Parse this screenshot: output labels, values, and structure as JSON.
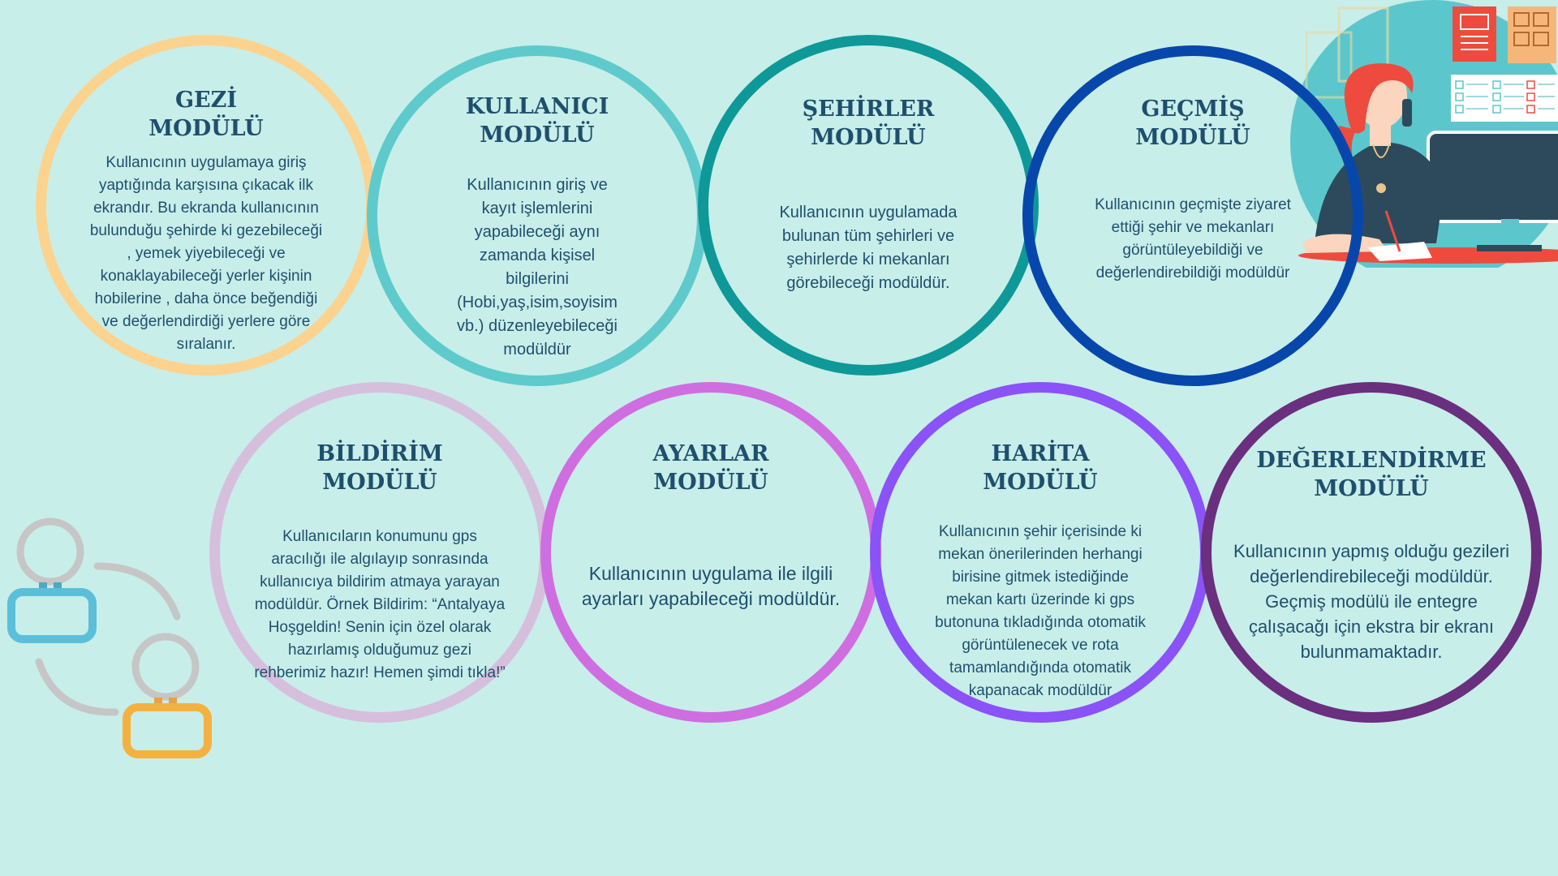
{
  "colors": {
    "background": "#c8eee9",
    "title_text": "#1e4f6e",
    "gezi": "#fbd38f",
    "kullanici": "#5ecacb",
    "sehirler": "#0e9898",
    "gecmis": "#0747ab",
    "bildirim": "#d6bfdc",
    "ayarlar": "#cf6ee0",
    "harita": "#8b52f7",
    "degerlendirme": "#6a2f7e"
  },
  "modules": {
    "gezi": {
      "title": [
        "GEZİ",
        "MODÜLÜ"
      ],
      "desc": [
        "Kullanıcının uygulamaya giriş",
        "yaptığında karşısına çıkacak ilk",
        "ekrandır. Bu ekranda kullanıcının",
        "bulunduğu şehirde ki gezebileceği",
        ", yemek yiyebileceği ve",
        "konaklayabileceği yerler kişinin",
        "hobilerine , daha önce beğendiği",
        "ve değerlendirdiği yerlere göre",
        "sıralanır."
      ]
    },
    "kullanici": {
      "title": [
        "KULLANICI",
        "MODÜLÜ"
      ],
      "desc": [
        "Kullanıcının giriş ve",
        "kayıt işlemlerini",
        "yapabileceği aynı",
        "zamanda kişisel",
        "bilgilerini",
        "(Hobi,yaş,isim,soyisim",
        "vb.) düzenleyebileceği",
        "modüldür"
      ]
    },
    "sehirler": {
      "title": [
        "ŞEHİRLER",
        "MODÜLÜ"
      ],
      "desc": [
        "Kullanıcının uygulamada",
        "bulunan tüm şehirleri ve",
        "şehirlerde ki mekanları",
        "görebileceği modüldür."
      ]
    },
    "gecmis": {
      "title": [
        "GEÇMİŞ",
        "MODÜLÜ"
      ],
      "desc": [
        "Kullanıcının geçmişte ziyaret",
        "ettiği şehir ve mekanları",
        "görüntüleyebildiği ve",
        "değerlendirebildiği modüldür"
      ]
    },
    "bildirim": {
      "title": [
        "BİLDİRİM",
        "MODÜLÜ"
      ],
      "desc": [
        "Kullanıcıların konumunu gps",
        "aracılığı ile algılayıp sonrasında",
        "kullanıcıya bildirim atmaya yarayan",
        "modüldür. Örnek Bildirim: “Antalyaya",
        "Hoşgeldin! Senin için özel olarak",
        "hazırlamış olduğumuz gezi",
        "rehberimiz hazır! Hemen şimdi tıkla!”"
      ]
    },
    "ayarlar": {
      "title": [
        "AYARLAR",
        "MODÜLÜ"
      ],
      "desc": [
        "Kullanıcının uygulama ile ilgili",
        "ayarları yapabileceği modüldür."
      ]
    },
    "harita": {
      "title": [
        "HARİTA",
        "MODÜLÜ"
      ],
      "desc": [
        "Kullanıcının şehir içerisinde ki",
        "mekan önerilerinden herhangi",
        "birisine gitmek istediğinde",
        "mekan kartı üzerinde ki gps",
        "butonuna tıkladığında otomatik",
        "görüntülenecek ve rota",
        "tamamlandığında otomatik",
        "kapanacak modüldür"
      ]
    },
    "degerlendirme": {
      "title": [
        "DEĞERLENDİRME",
        "MODÜLÜ"
      ],
      "desc": [
        "Kullanıcının yapmış olduğu gezileri",
        "değerlendirebileceği modüldür.",
        "Geçmiş modülü ile entegre",
        "çalışacağı için ekstra bir ekranı",
        "bulunmamaktadır."
      ]
    }
  },
  "illustrations": {
    "office_worker": "woman-on-phone-at-computer-illustration",
    "users": "two-users-connected-icon"
  }
}
